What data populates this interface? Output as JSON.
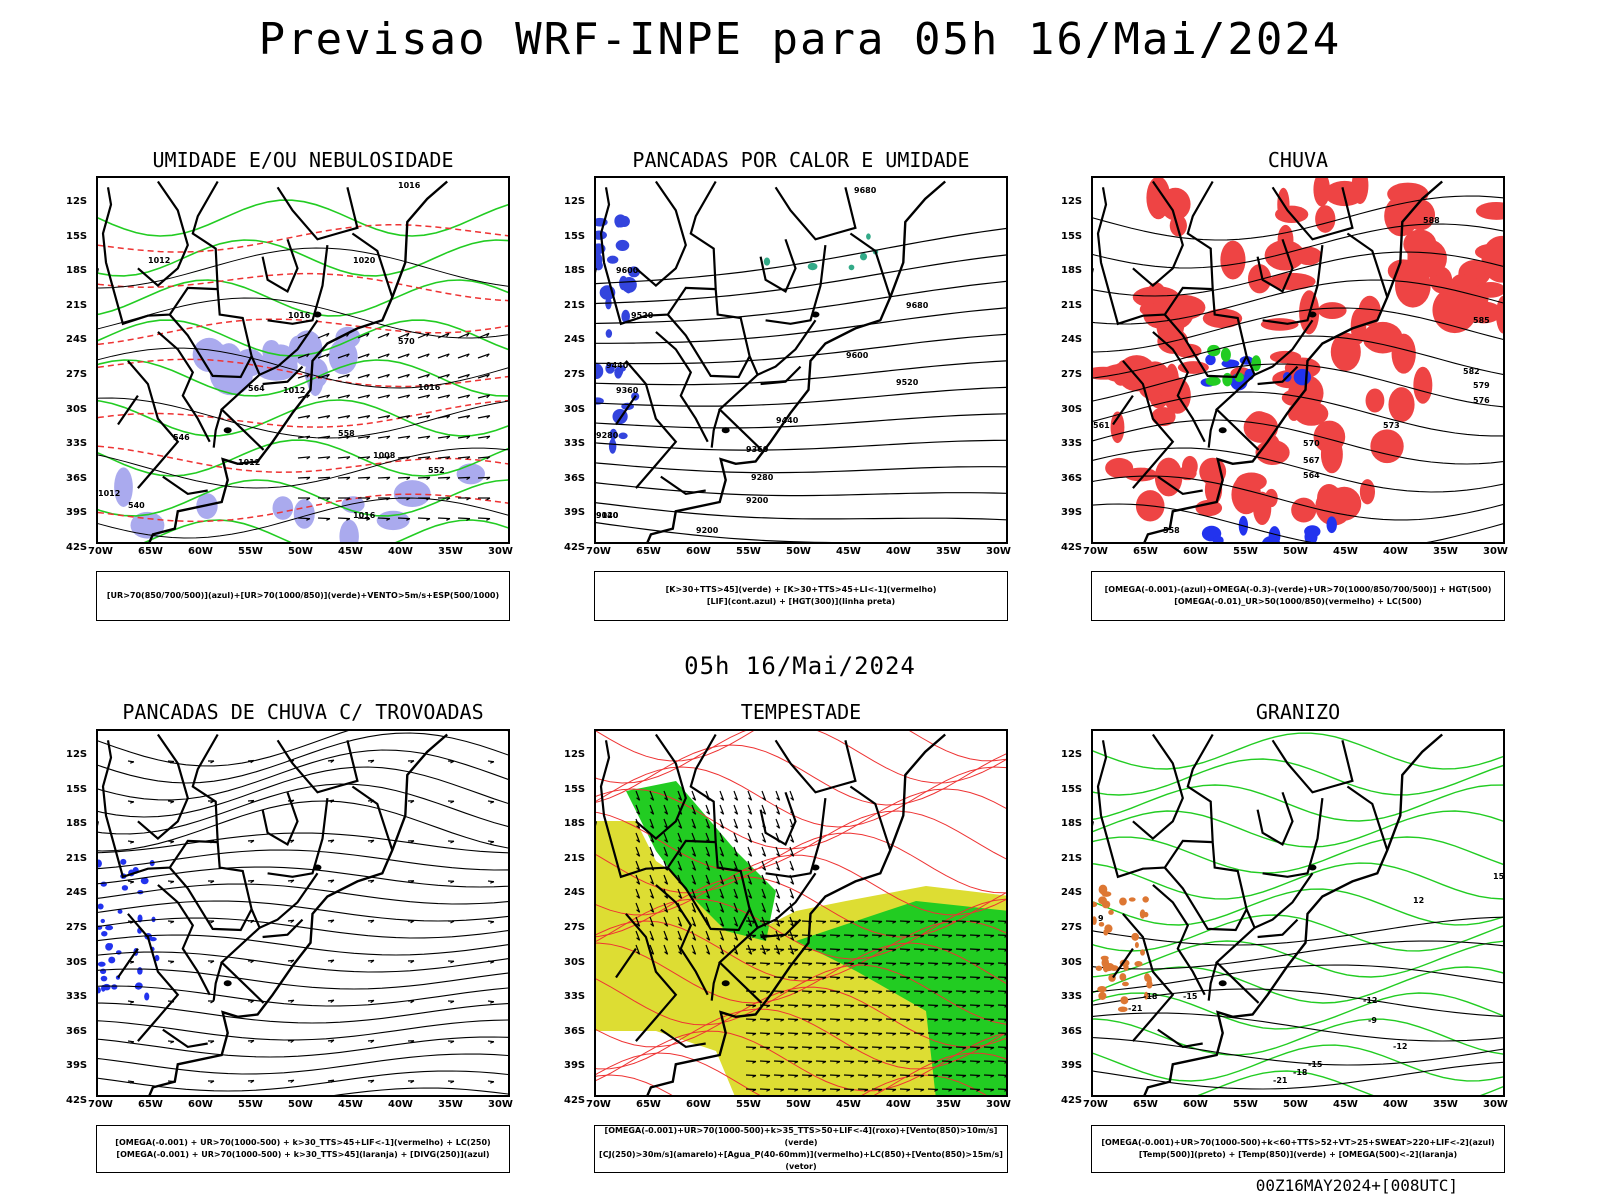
{
  "title": "Previsao WRF-INPE  para 05h 16/Mai/2024",
  "subtitle": "05h 16/Mai/2024",
  "footer": "00Z16MAY2024+[008UTC]",
  "lat_labels": [
    "12S",
    "15S",
    "18S",
    "21S",
    "24S",
    "27S",
    "30S",
    "33S",
    "36S",
    "39S",
    "42S"
  ],
  "lon_labels": [
    "70W",
    "65W",
    "60W",
    "55W",
    "50W",
    "45W",
    "40W",
    "35W",
    "30W"
  ],
  "panels": [
    {
      "title": "UMIDADE E/OU NEBULOSIDADE",
      "legend": [
        "[UR>70(850/700/500)](azul)+[UR>70(1000/850)](verde)+VENTO>5m/s+ESP(500/1000)"
      ],
      "contour_labels": [
        "1016",
        "1012",
        "1020",
        "1016",
        "1012",
        "1016",
        "1008",
        "1012",
        "1016",
        "1012",
        "570",
        "564",
        "558",
        "552",
        "546",
        "540"
      ]
    },
    {
      "title": "PANCADAS POR CALOR E UMIDADE",
      "legend": [
        "[K>30+TTS>45](verde) + [K>30+TTS>45+LI<-1](vermelho)",
        "[LIF](cont.azul) + [HGT(300)](linha preta)"
      ],
      "contour_labels": [
        "9680",
        "9600",
        "9520",
        "9440",
        "9360",
        "9280",
        "9200",
        "9120",
        "9040",
        "9680",
        "9600",
        "9520",
        "9440",
        "9360",
        "9280",
        "9200"
      ]
    },
    {
      "title": "CHUVA",
      "legend": [
        "[OMEGA(-0.001)-(azul)+OMEGA(-0.3)-(verde)+UR>70(1000/850/700/500)] + HGT(500)",
        "[OMEGA(-0.01)_UR>50(1000/850)(vermelho) + LC(500)"
      ],
      "contour_labels": [
        "588",
        "585",
        "582",
        "579",
        "576",
        "573",
        "570",
        "567",
        "564",
        "561",
        "558"
      ]
    },
    {
      "title": "PANCADAS DE CHUVA C/ TROVOADAS",
      "legend": [
        "[OMEGA(-0.001) + UR>70(1000-500) + k>30_TTS>45+LIF<-1](vermelho) + LC(250)",
        "[OMEGA(-0.001) + UR>70(1000-500) + k>30_TTS>45](laranja) + [DIVG(250)](azul)"
      ],
      "contour_labels": []
    },
    {
      "title": "TEMPESTADE",
      "legend": [
        "[OMEGA(-0.001)+UR>70(1000-500)+k>35_TTS>50+LIF<-4](roxo)+[Vento(850)>10m/s](verde)",
        "[CJ(250)>30m/s](amarelo)+[Agua_P(40-60mm)](vermelho)+LC(850)+[Vento(850)>15m/s](vetor)"
      ],
      "contour_labels": []
    },
    {
      "title": "GRANIZO",
      "legend": [
        "[OMEGA(-0.001)+UR>70(1000-500)+k<60+TTS>52+VT>25+SWEAT>220+LIF<-2](azul)",
        "[Temp(500)](preto) + [Temp(850)](verde) + [OMEGA(500)<-2](laranja)"
      ],
      "contour_labels": [
        "-21",
        "-18",
        "-15",
        "-12",
        "-9",
        "-12",
        "-15",
        "-18",
        "-21",
        "15",
        "12",
        "9"
      ]
    }
  ],
  "colors": {
    "humid_green": "#22cc22",
    "humid_blue": "#aaaaee",
    "contour_red": "#ee3333",
    "rain_red": "#ee4444",
    "rain_blue": "#2233ee",
    "yellow": "#dddd33",
    "green_fill": "#22cc22",
    "orange": "#dd7733",
    "black": "#000000"
  }
}
